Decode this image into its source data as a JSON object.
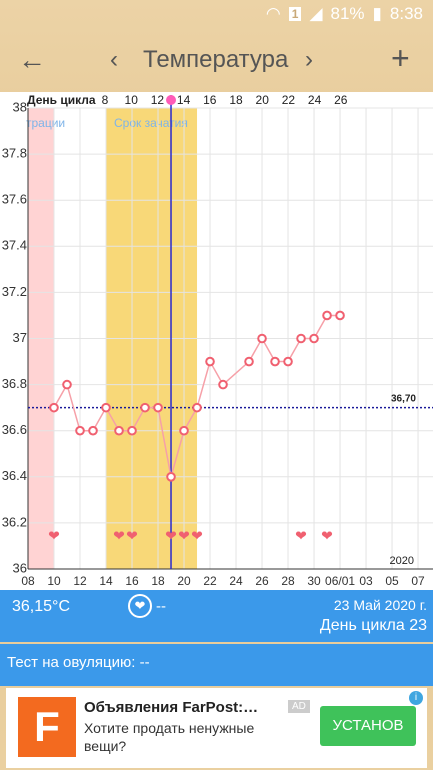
{
  "status_bar": {
    "sim": "1",
    "battery": "81%",
    "time": "8:38"
  },
  "toolbar": {
    "title": "Температура"
  },
  "chart_data": {
    "type": "line",
    "cycle_day_label": "День цикла",
    "cycle_days": [
      8,
      10,
      12,
      14,
      16,
      18,
      20,
      22,
      24,
      26
    ],
    "x": [
      10,
      11,
      12,
      13,
      14,
      15,
      16,
      17,
      18,
      19,
      20,
      21,
      22,
      23,
      25,
      26,
      27,
      28,
      29,
      30,
      31,
      32
    ],
    "values": [
      36.7,
      36.8,
      36.6,
      36.6,
      36.7,
      36.6,
      36.6,
      36.7,
      36.7,
      36.4,
      36.6,
      36.7,
      36.9,
      36.8,
      36.9,
      37.0,
      36.9,
      36.9,
      37.0,
      37.0,
      37.1,
      37.1
    ],
    "color": "#f06070",
    "xlim": [
      8,
      39.15
    ],
    "xticks": [
      {
        "value": 8,
        "label": "08"
      },
      10,
      12,
      14,
      16,
      18,
      20,
      22,
      24,
      26,
      28,
      30,
      {
        "value": 32,
        "label": "06/01"
      },
      {
        "value": 34,
        "label": "03"
      },
      {
        "value": 36,
        "label": "05"
      },
      {
        "value": 38,
        "label": "07"
      }
    ],
    "ylim": [
      36,
      38
    ],
    "yticks": [
      36,
      36.2,
      36.4,
      36.6,
      36.8,
      37,
      37.2,
      37.4,
      37.6,
      37.8,
      38
    ],
    "grid": true,
    "bands": [
      {
        "label": "трации",
        "from": 8,
        "to": 10,
        "color": "#ffd3d3"
      },
      {
        "label": "Срок зачатия",
        "from": 14,
        "to": 21,
        "color": "#f8d878"
      }
    ],
    "ovulation_day": 19,
    "cover_line": {
      "value": 36.7,
      "label": "36,70"
    },
    "heart_days": [
      10,
      15,
      16,
      19,
      20,
      21,
      29,
      31
    ],
    "year_label": "2020"
  },
  "info": {
    "temperature": "36,15°C",
    "heart_count": "--",
    "date": "23 Май 2020 г.",
    "cycle_day": "День цикла 23",
    "ovulation_test": "Тест на овуляцию: --"
  },
  "ad": {
    "logo": "F",
    "title": "Объявления FarPost:…",
    "badge": "AD",
    "text": "Хотите продать ненужные вещи?",
    "button": "УСТАНОВ"
  }
}
